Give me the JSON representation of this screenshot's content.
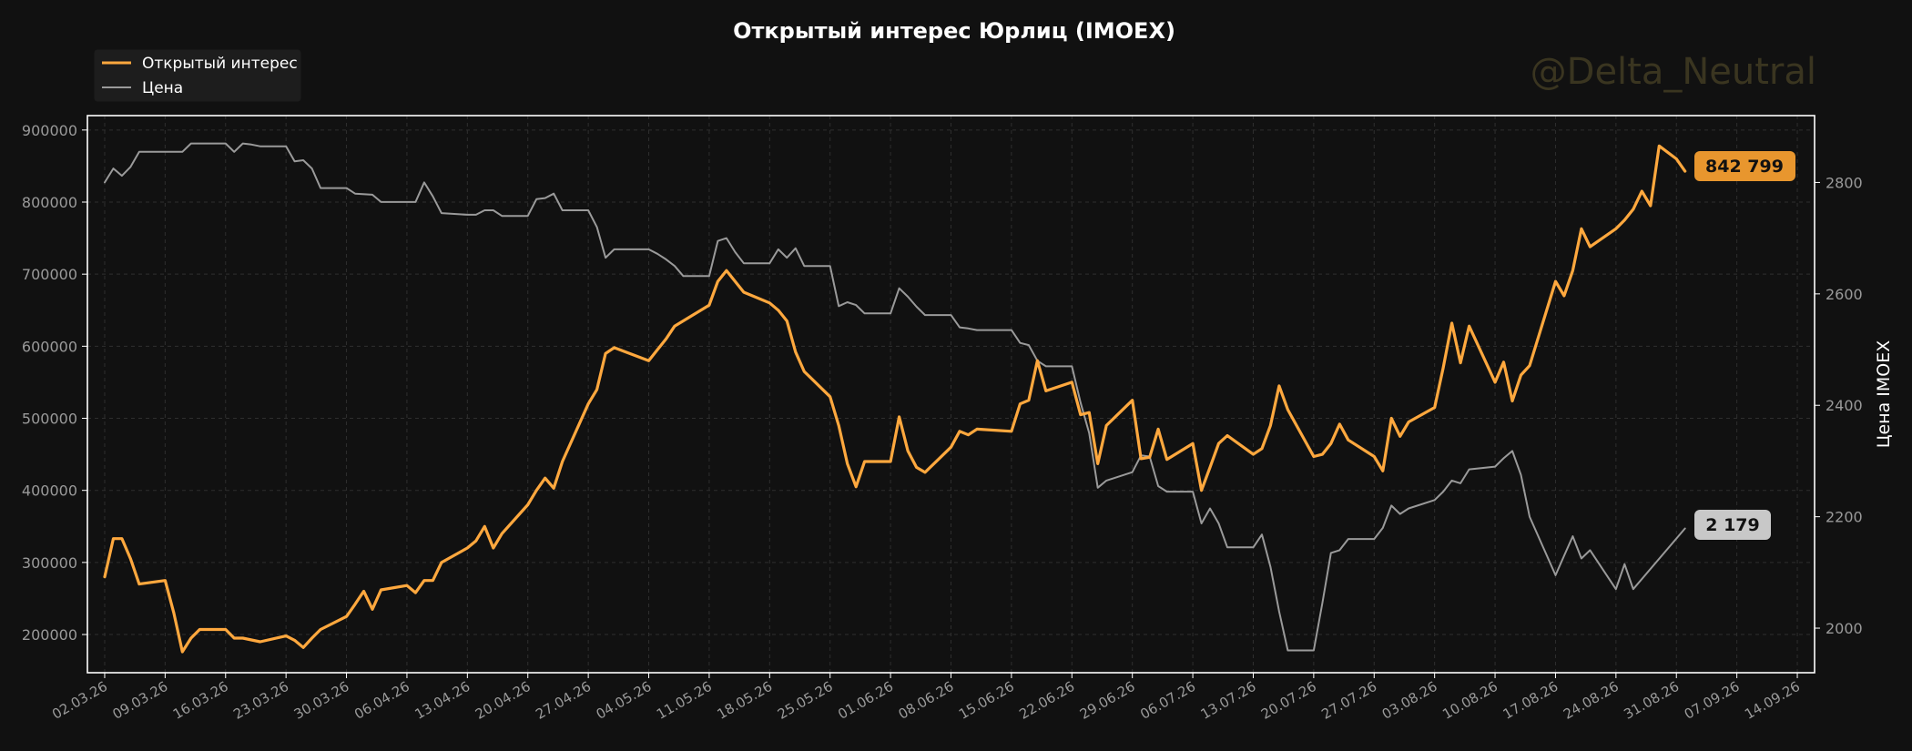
{
  "watermark": "@Delta_Neutral",
  "colors": {
    "background": "#111111",
    "plot_border": "#ffffff",
    "grid": "#2f2f2f",
    "oi": "#ffa83e",
    "price": "#9a9a9a",
    "oi_badge": "#e8962e",
    "price_badge": "#c8c8c8",
    "tick_text": "#9a9a9a",
    "title_text": "#ffffff",
    "watermark": "#3a3520"
  },
  "chart_data": {
    "type": "line",
    "title": "Открытый интерес Юрлиц (IMOEX)",
    "y2label": "Цена IMOEX",
    "legend": {
      "placement": "top-left",
      "entries": [
        "Открытый интерес",
        "Цена"
      ]
    },
    "grid": true,
    "xlim": [
      "2026-02-28",
      "2026-09-16"
    ],
    "ylim": [
      147000,
      920000
    ],
    "y2lim": [
      1920,
      2920
    ],
    "x_ticks": [
      "02.03.26",
      "09.03.26",
      "16.03.26",
      "23.03.26",
      "30.03.26",
      "06.04.26",
      "13.04.26",
      "20.04.26",
      "27.04.26",
      "04.05.26",
      "11.05.26",
      "18.05.26",
      "25.05.26",
      "01.06.26",
      "08.06.26",
      "15.06.26",
      "22.06.26",
      "29.06.26",
      "06.07.26",
      "13.07.26",
      "20.07.26",
      "27.07.26",
      "03.08.26",
      "10.08.26",
      "17.08.26",
      "24.08.26",
      "31.08.26",
      "07.09.26",
      "14.09.26"
    ],
    "y_ticks": [
      "200000",
      "300000",
      "400000",
      "500000",
      "600000",
      "700000",
      "800000",
      "900000"
    ],
    "y2_ticks": [
      "2000",
      "2200",
      "2400",
      "2600",
      "2800"
    ],
    "series": [
      {
        "name": "Открытый интерес",
        "axis": "left",
        "last_label": "842 799",
        "points": [
          [
            "2026-03-02",
            280000
          ],
          [
            "2026-03-03",
            333000
          ],
          [
            "2026-03-04",
            333000
          ],
          [
            "2026-03-05",
            305000
          ],
          [
            "2026-03-06",
            270000
          ],
          [
            "2026-03-09",
            275000
          ],
          [
            "2026-03-10",
            230000
          ],
          [
            "2026-03-11",
            176000
          ],
          [
            "2026-03-12",
            195000
          ],
          [
            "2026-03-13",
            207000
          ],
          [
            "2026-03-16",
            207000
          ],
          [
            "2026-03-17",
            195000
          ],
          [
            "2026-03-18",
            195000
          ],
          [
            "2026-03-20",
            190000
          ],
          [
            "2026-03-23",
            198000
          ],
          [
            "2026-03-24",
            192000
          ],
          [
            "2026-03-25",
            182000
          ],
          [
            "2026-03-26",
            195000
          ],
          [
            "2026-03-27",
            207000
          ],
          [
            "2026-03-30",
            225000
          ],
          [
            "2026-03-31",
            242000
          ],
          [
            "2026-04-01",
            260000
          ],
          [
            "2026-04-02",
            235000
          ],
          [
            "2026-04-03",
            262000
          ],
          [
            "2026-04-06",
            268000
          ],
          [
            "2026-04-07",
            258000
          ],
          [
            "2026-04-08",
            275000
          ],
          [
            "2026-04-09",
            275000
          ],
          [
            "2026-04-10",
            300000
          ],
          [
            "2026-04-13",
            320000
          ],
          [
            "2026-04-14",
            330000
          ],
          [
            "2026-04-15",
            350000
          ],
          [
            "2026-04-16",
            320000
          ],
          [
            "2026-04-17",
            340000
          ],
          [
            "2026-04-20",
            380000
          ],
          [
            "2026-04-21",
            400000
          ],
          [
            "2026-04-22",
            417000
          ],
          [
            "2026-04-23",
            403000
          ],
          [
            "2026-04-24",
            440000
          ],
          [
            "2026-04-27",
            520000
          ],
          [
            "2026-04-28",
            540000
          ],
          [
            "2026-04-29",
            590000
          ],
          [
            "2026-04-30",
            598000
          ],
          [
            "2026-05-04",
            580000
          ],
          [
            "2026-05-05",
            595000
          ],
          [
            "2026-05-06",
            610000
          ],
          [
            "2026-05-07",
            628000
          ],
          [
            "2026-05-11",
            657000
          ],
          [
            "2026-05-12",
            690000
          ],
          [
            "2026-05-13",
            705000
          ],
          [
            "2026-05-14",
            690000
          ],
          [
            "2026-05-15",
            675000
          ],
          [
            "2026-05-18",
            660000
          ],
          [
            "2026-05-19",
            650000
          ],
          [
            "2026-05-20",
            635000
          ],
          [
            "2026-05-21",
            592000
          ],
          [
            "2026-05-22",
            565000
          ],
          [
            "2026-05-25",
            530000
          ],
          [
            "2026-05-26",
            490000
          ],
          [
            "2026-05-27",
            437000
          ],
          [
            "2026-05-28",
            405000
          ],
          [
            "2026-05-29",
            440000
          ],
          [
            "2026-06-01",
            440000
          ],
          [
            "2026-06-02",
            502000
          ],
          [
            "2026-06-03",
            455000
          ],
          [
            "2026-06-04",
            432000
          ],
          [
            "2026-06-05",
            425000
          ],
          [
            "2026-06-08",
            460000
          ],
          [
            "2026-06-09",
            482000
          ],
          [
            "2026-06-10",
            477000
          ],
          [
            "2026-06-11",
            485000
          ],
          [
            "2026-06-15",
            482000
          ],
          [
            "2026-06-16",
            520000
          ],
          [
            "2026-06-17",
            525000
          ],
          [
            "2026-06-18",
            580000
          ],
          [
            "2026-06-19",
            538000
          ],
          [
            "2026-06-22",
            550000
          ],
          [
            "2026-06-23",
            505000
          ],
          [
            "2026-06-24",
            508000
          ],
          [
            "2026-06-25",
            437000
          ],
          [
            "2026-06-26",
            490000
          ],
          [
            "2026-06-29",
            525000
          ],
          [
            "2026-06-30",
            444000
          ],
          [
            "2026-07-01",
            446000
          ],
          [
            "2026-07-02",
            485000
          ],
          [
            "2026-07-03",
            443000
          ],
          [
            "2026-07-06",
            465000
          ],
          [
            "2026-07-07",
            400000
          ],
          [
            "2026-07-08",
            432000
          ],
          [
            "2026-07-09",
            465000
          ],
          [
            "2026-07-10",
            476000
          ],
          [
            "2026-07-13",
            450000
          ],
          [
            "2026-07-14",
            458000
          ],
          [
            "2026-07-15",
            490000
          ],
          [
            "2026-07-16",
            545000
          ],
          [
            "2026-07-17",
            512000
          ],
          [
            "2026-07-20",
            447000
          ],
          [
            "2026-07-21",
            450000
          ],
          [
            "2026-07-22",
            465000
          ],
          [
            "2026-07-23",
            492000
          ],
          [
            "2026-07-24",
            470000
          ],
          [
            "2026-07-27",
            447000
          ],
          [
            "2026-07-28",
            427000
          ],
          [
            "2026-07-29",
            500000
          ],
          [
            "2026-07-30",
            475000
          ],
          [
            "2026-07-31",
            495000
          ],
          [
            "2026-08-03",
            515000
          ],
          [
            "2026-08-04",
            570000
          ],
          [
            "2026-08-05",
            632000
          ],
          [
            "2026-08-06",
            577000
          ],
          [
            "2026-08-07",
            628000
          ],
          [
            "2026-08-10",
            550000
          ],
          [
            "2026-08-11",
            578000
          ],
          [
            "2026-08-12",
            524000
          ],
          [
            "2026-08-13",
            560000
          ],
          [
            "2026-08-14",
            573000
          ],
          [
            "2026-08-17",
            690000
          ],
          [
            "2026-08-18",
            670000
          ],
          [
            "2026-08-19",
            705000
          ],
          [
            "2026-08-20",
            763000
          ],
          [
            "2026-08-21",
            738000
          ],
          [
            "2026-08-24",
            763000
          ],
          [
            "2026-08-25",
            775000
          ],
          [
            "2026-08-26",
            790000
          ],
          [
            "2026-08-27",
            815000
          ],
          [
            "2026-08-28",
            795000
          ],
          [
            "2026-08-29",
            878000
          ],
          [
            "2026-08-31",
            860000
          ],
          [
            "2026-09-01",
            842799
          ]
        ]
      },
      {
        "name": "Цена",
        "axis": "right",
        "last_label": "2 179",
        "points": [
          [
            "2026-03-02",
            2800
          ],
          [
            "2026-03-03",
            2825
          ],
          [
            "2026-03-04",
            2812
          ],
          [
            "2026-03-05",
            2828
          ],
          [
            "2026-03-06",
            2855
          ],
          [
            "2026-03-09",
            2855
          ],
          [
            "2026-03-10",
            2855
          ],
          [
            "2026-03-11",
            2855
          ],
          [
            "2026-03-12",
            2870
          ],
          [
            "2026-03-16",
            2870
          ],
          [
            "2026-03-17",
            2855
          ],
          [
            "2026-03-18",
            2870
          ],
          [
            "2026-03-19",
            2868
          ],
          [
            "2026-03-20",
            2865
          ],
          [
            "2026-03-23",
            2865
          ],
          [
            "2026-03-24",
            2838
          ],
          [
            "2026-03-25",
            2840
          ],
          [
            "2026-03-26",
            2825
          ],
          [
            "2026-03-27",
            2790
          ],
          [
            "2026-03-30",
            2790
          ],
          [
            "2026-03-31",
            2780
          ],
          [
            "2026-04-02",
            2778
          ],
          [
            "2026-04-03",
            2765
          ],
          [
            "2026-04-06",
            2765
          ],
          [
            "2026-04-07",
            2765
          ],
          [
            "2026-04-08",
            2800
          ],
          [
            "2026-04-09",
            2775
          ],
          [
            "2026-04-10",
            2745
          ],
          [
            "2026-04-13",
            2742
          ],
          [
            "2026-04-14",
            2742
          ],
          [
            "2026-04-15",
            2750
          ],
          [
            "2026-04-16",
            2750
          ],
          [
            "2026-04-17",
            2740
          ],
          [
            "2026-04-20",
            2740
          ],
          [
            "2026-04-21",
            2770
          ],
          [
            "2026-04-22",
            2772
          ],
          [
            "2026-04-23",
            2780
          ],
          [
            "2026-04-24",
            2750
          ],
          [
            "2026-04-27",
            2750
          ],
          [
            "2026-04-28",
            2720
          ],
          [
            "2026-04-29",
            2665
          ],
          [
            "2026-04-30",
            2680
          ],
          [
            "2026-05-04",
            2680
          ],
          [
            "2026-05-05",
            2672
          ],
          [
            "2026-05-06",
            2662
          ],
          [
            "2026-05-07",
            2650
          ],
          [
            "2026-05-08",
            2632
          ],
          [
            "2026-05-11",
            2632
          ],
          [
            "2026-05-12",
            2695
          ],
          [
            "2026-05-13",
            2700
          ],
          [
            "2026-05-14",
            2675
          ],
          [
            "2026-05-15",
            2655
          ],
          [
            "2026-05-18",
            2655
          ],
          [
            "2026-05-19",
            2680
          ],
          [
            "2026-05-20",
            2665
          ],
          [
            "2026-05-21",
            2682
          ],
          [
            "2026-05-22",
            2650
          ],
          [
            "2026-05-25",
            2650
          ],
          [
            "2026-05-26",
            2578
          ],
          [
            "2026-05-27",
            2585
          ],
          [
            "2026-05-28",
            2580
          ],
          [
            "2026-05-29",
            2565
          ],
          [
            "2026-06-01",
            2565
          ],
          [
            "2026-06-02",
            2610
          ],
          [
            "2026-06-03",
            2595
          ],
          [
            "2026-06-04",
            2577
          ],
          [
            "2026-06-05",
            2562
          ],
          [
            "2026-06-08",
            2562
          ],
          [
            "2026-06-09",
            2540
          ],
          [
            "2026-06-10",
            2538
          ],
          [
            "2026-06-11",
            2535
          ],
          [
            "2026-06-15",
            2535
          ],
          [
            "2026-06-16",
            2512
          ],
          [
            "2026-06-17",
            2508
          ],
          [
            "2026-06-18",
            2480
          ],
          [
            "2026-06-19",
            2470
          ],
          [
            "2026-06-22",
            2470
          ],
          [
            "2026-06-23",
            2405
          ],
          [
            "2026-06-24",
            2350
          ],
          [
            "2026-06-25",
            2252
          ],
          [
            "2026-06-26",
            2265
          ],
          [
            "2026-06-29",
            2280
          ],
          [
            "2026-06-30",
            2310
          ],
          [
            "2026-07-01",
            2308
          ],
          [
            "2026-07-02",
            2255
          ],
          [
            "2026-07-03",
            2245
          ],
          [
            "2026-07-06",
            2245
          ],
          [
            "2026-07-07",
            2188
          ],
          [
            "2026-07-08",
            2215
          ],
          [
            "2026-07-09",
            2188
          ],
          [
            "2026-07-10",
            2145
          ],
          [
            "2026-07-13",
            2145
          ],
          [
            "2026-07-14",
            2168
          ],
          [
            "2026-07-15",
            2110
          ],
          [
            "2026-07-16",
            2030
          ],
          [
            "2026-07-17",
            1960
          ],
          [
            "2026-07-20",
            1960
          ],
          [
            "2026-07-21",
            2045
          ],
          [
            "2026-07-22",
            2135
          ],
          [
            "2026-07-23",
            2140
          ],
          [
            "2026-07-24",
            2160
          ],
          [
            "2026-07-27",
            2160
          ],
          [
            "2026-07-28",
            2180
          ],
          [
            "2026-07-29",
            2220
          ],
          [
            "2026-07-30",
            2205
          ],
          [
            "2026-07-31",
            2215
          ],
          [
            "2026-08-03",
            2230
          ],
          [
            "2026-08-04",
            2245
          ],
          [
            "2026-08-05",
            2265
          ],
          [
            "2026-08-06",
            2260
          ],
          [
            "2026-08-07",
            2285
          ],
          [
            "2026-08-10",
            2290
          ],
          [
            "2026-08-11",
            2305
          ],
          [
            "2026-08-12",
            2318
          ],
          [
            "2026-08-13",
            2275
          ],
          [
            "2026-08-14",
            2200
          ],
          [
            "2026-08-17",
            2095
          ],
          [
            "2026-08-18",
            2130
          ],
          [
            "2026-08-19",
            2165
          ],
          [
            "2026-08-20",
            2125
          ],
          [
            "2026-08-21",
            2140
          ],
          [
            "2026-08-24",
            2070
          ],
          [
            "2026-08-25",
            2115
          ],
          [
            "2026-08-26",
            2070
          ],
          [
            "2026-09-01",
            2179
          ]
        ]
      }
    ]
  }
}
